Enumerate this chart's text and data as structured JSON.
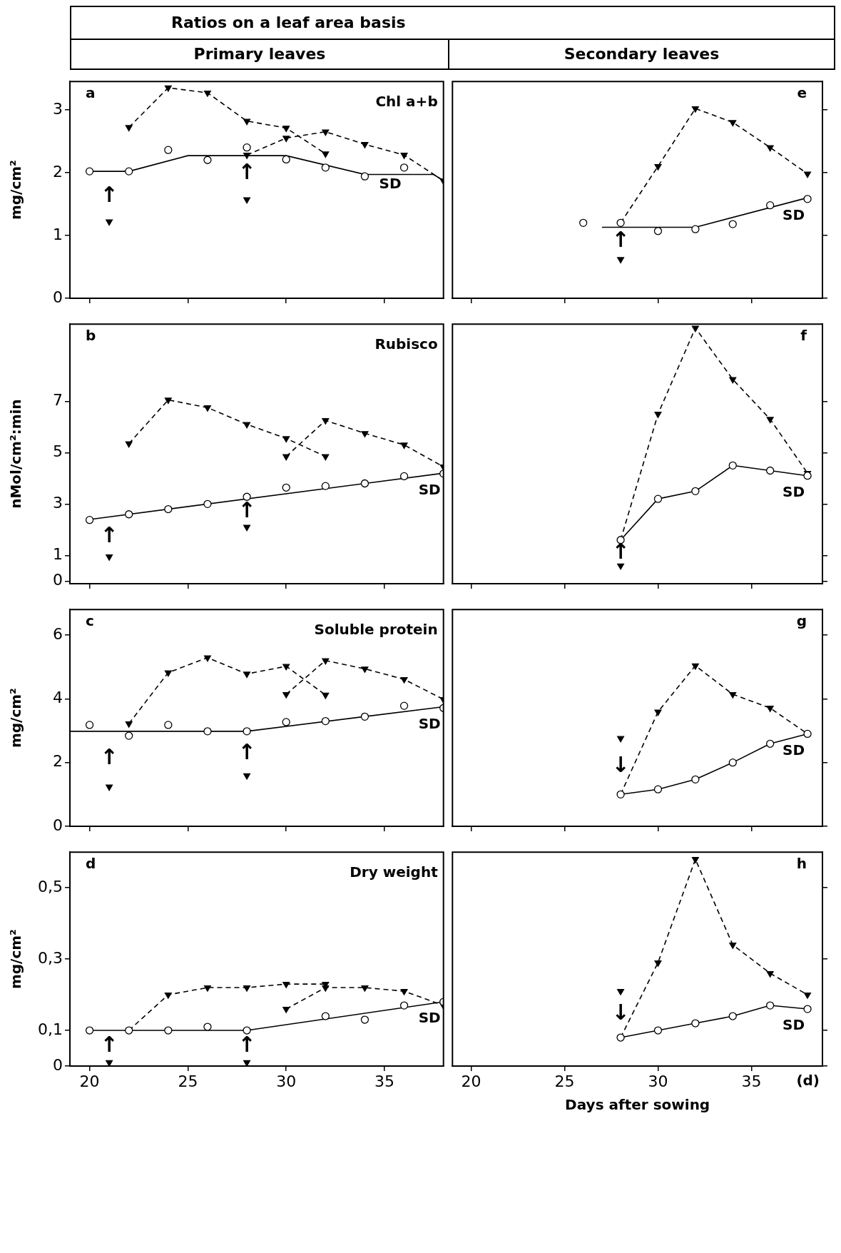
{
  "chart_data": [
    {
      "type": "line",
      "title": "Ratios on a leaf area basis",
      "subtitle": "Primary leaves",
      "ylabel": "mg/cm²",
      "xlim": [
        19,
        38
      ],
      "xticks": [
        20,
        25,
        30,
        35
      ],
      "ylim": [
        0,
        3.45
      ],
      "yticks": [
        0,
        1,
        2,
        3
      ],
      "tick_labels": "y",
      "annotations": [
        "a",
        "Chl a+b",
        "↑",
        "↑"
      ],
      "series": [
        {
          "name": "SD",
          "type": "scatter",
          "marker": "circle",
          "color": "#000000",
          "x": [
            20,
            22,
            24,
            26,
            28,
            30,
            32,
            34,
            36
          ],
          "values": [
            2.02,
            2.02,
            2.36,
            2.2,
            2.4,
            2.21,
            2.08,
            1.94,
            2.08
          ]
        },
        {
          "type": "line",
          "marker": "none",
          "line_style": "solid",
          "color": "#000000",
          "x": [
            20,
            22,
            25,
            30,
            34,
            37.5,
            38
          ],
          "values": [
            2.02,
            2.02,
            2.27,
            2.27,
            1.97,
            1.97,
            1.87
          ]
        },
        {
          "type": "line",
          "marker": "triangle",
          "line_style": "dashed",
          "color": "#000000",
          "x": [
            22,
            24,
            26,
            28,
            30,
            32
          ],
          "values": [
            2.72,
            3.35,
            3.27,
            2.82,
            2.71,
            2.3
          ]
        },
        {
          "type": "line",
          "marker": "triangle",
          "line_style": "dashed",
          "color": "#000000",
          "x": [
            28,
            30,
            32,
            34,
            36,
            38
          ],
          "values": [
            2.28,
            2.55,
            2.65,
            2.45,
            2.28,
            1.87
          ]
        },
        {
          "type": "scatter",
          "marker": "triangle",
          "color": "#000000",
          "x": [
            21,
            28
          ],
          "values": [
            1.22,
            1.57
          ]
        }
      ]
    },
    {
      "type": "line",
      "subtitle": "Secondary leaves",
      "xlim": [
        19,
        38.8
      ],
      "xticks": [
        20,
        25,
        30,
        35
      ],
      "ylim": [
        0,
        3.45
      ],
      "yticks": [
        0,
        1,
        2,
        3
      ],
      "tick_labels": false,
      "annotations": [
        "e",
        "↑"
      ],
      "series": [
        {
          "name": "SD",
          "type": "scatter",
          "marker": "circle",
          "color": "#000000",
          "x": [
            26,
            28,
            30,
            32,
            34,
            36,
            38
          ],
          "values": [
            1.2,
            1.2,
            1.07,
            1.1,
            1.18,
            1.48,
            1.58
          ]
        },
        {
          "type": "line",
          "marker": "none",
          "line_style": "solid",
          "color": "#000000",
          "x": [
            27,
            32,
            38
          ],
          "values": [
            1.13,
            1.13,
            1.6
          ]
        },
        {
          "type": "line",
          "marker": "triangle",
          "line_style": "dashed",
          "color": "#000000",
          "x": [
            28,
            30,
            32,
            34,
            36,
            38
          ],
          "values": [
            1.2,
            2.1,
            3.02,
            2.8,
            2.4,
            1.98
          ]
        },
        {
          "type": "scatter",
          "marker": "triangle",
          "color": "#000000",
          "x": [
            28
          ],
          "values": [
            0.62
          ]
        }
      ]
    },
    {
      "type": "line",
      "ylabel": "nMol/cm²:min",
      "xlim": [
        19,
        38
      ],
      "xticks": [
        20,
        25,
        30,
        35
      ],
      "ylim": [
        -0.1,
        10
      ],
      "yticks": [
        0,
        1,
        3,
        5,
        7
      ],
      "tick_labels": "y",
      "annotations": [
        "b",
        "Rubisco",
        "↑",
        "↑"
      ],
      "series": [
        {
          "name": "SD",
          "type": "scatter",
          "marker": "circle",
          "color": "#000000",
          "x": [
            20,
            22,
            24,
            26,
            28,
            30,
            32,
            34,
            36,
            38
          ],
          "values": [
            2.38,
            2.6,
            2.8,
            3.0,
            3.28,
            3.64,
            3.7,
            3.8,
            4.08,
            4.18
          ]
        },
        {
          "type": "line",
          "marker": "none",
          "line_style": "solid",
          "color": "#000000",
          "x": [
            20,
            38
          ],
          "values": [
            2.4,
            4.2
          ]
        },
        {
          "type": "line",
          "marker": "triangle",
          "line_style": "dashed",
          "color": "#000000",
          "x": [
            22,
            24,
            26,
            28,
            30,
            32
          ],
          "values": [
            5.35,
            7.05,
            6.75,
            6.1,
            5.55,
            4.85
          ]
        },
        {
          "type": "line",
          "marker": "triangle",
          "line_style": "dashed",
          "color": "#000000",
          "x": [
            30,
            32,
            34,
            36,
            38
          ],
          "values": [
            4.85,
            6.25,
            5.75,
            5.3,
            4.45
          ]
        },
        {
          "type": "scatter",
          "marker": "triangle",
          "color": "#000000",
          "x": [
            21,
            28
          ],
          "values": [
            0.95,
            2.1
          ]
        }
      ]
    },
    {
      "type": "line",
      "xlim": [
        19,
        38.8
      ],
      "xticks": [
        20,
        25,
        30,
        35
      ],
      "ylim": [
        -0.1,
        10
      ],
      "yticks": [
        0,
        1,
        3,
        5,
        7
      ],
      "tick_labels": false,
      "annotations": [
        "f",
        "↑"
      ],
      "series": [
        {
          "name": "SD",
          "type": "line",
          "marker": "circle",
          "line_style": "solid",
          "color": "#000000",
          "x": [
            28,
            30,
            32,
            34,
            36,
            38
          ],
          "values": [
            1.6,
            3.2,
            3.5,
            4.5,
            4.3,
            4.1
          ]
        },
        {
          "type": "line",
          "marker": "triangle",
          "line_style": "dashed",
          "color": "#000000",
          "x": [
            28,
            30,
            32,
            34,
            36,
            38
          ],
          "values": [
            1.6,
            6.5,
            9.85,
            7.85,
            6.3,
            4.2
          ]
        },
        {
          "type": "scatter",
          "marker": "triangle",
          "color": "#000000",
          "x": [
            28
          ],
          "values": [
            0.6
          ]
        }
      ]
    },
    {
      "type": "line",
      "ylabel": "mg/cm²",
      "xlim": [
        19,
        38
      ],
      "xticks": [
        20,
        25,
        30,
        35
      ],
      "ylim": [
        0,
        6.8
      ],
      "yticks": [
        0,
        2,
        4,
        6
      ],
      "tick_labels": "y",
      "annotations": [
        "c",
        "Soluble protein",
        "↑",
        "↑"
      ],
      "series": [
        {
          "name": "SD",
          "type": "scatter",
          "marker": "circle",
          "color": "#000000",
          "x": [
            20,
            22,
            24,
            26,
            28,
            30,
            32,
            34,
            36,
            38
          ],
          "values": [
            3.18,
            2.84,
            3.18,
            2.98,
            2.98,
            3.27,
            3.3,
            3.44,
            3.78,
            3.71
          ]
        },
        {
          "type": "line",
          "marker": "none",
          "line_style": "solid",
          "color": "#000000",
          "x": [
            19,
            28,
            38
          ],
          "values": [
            2.98,
            2.98,
            3.75
          ]
        },
        {
          "type": "line",
          "marker": "triangle",
          "line_style": "dashed",
          "color": "#000000",
          "x": [
            22,
            24,
            26,
            28,
            30,
            32
          ],
          "values": [
            3.22,
            4.82,
            5.29,
            4.78,
            5.02,
            4.12
          ]
        },
        {
          "type": "line",
          "marker": "triangle",
          "line_style": "dashed",
          "color": "#000000",
          "x": [
            30,
            32,
            34,
            36,
            38
          ],
          "values": [
            4.14,
            5.2,
            4.94,
            4.61,
            3.98
          ]
        },
        {
          "type": "scatter",
          "marker": "triangle",
          "color": "#000000",
          "x": [
            21,
            28
          ],
          "values": [
            1.24,
            1.59
          ]
        }
      ]
    },
    {
      "type": "line",
      "xlim": [
        19,
        38.8
      ],
      "xticks": [
        20,
        25,
        30,
        35
      ],
      "ylim": [
        0,
        6.8
      ],
      "yticks": [
        0,
        2,
        4,
        6
      ],
      "tick_labels": false,
      "annotations": [
        "g",
        "↓"
      ],
      "series": [
        {
          "name": "SD",
          "type": "line",
          "marker": "circle",
          "line_style": "solid",
          "color": "#000000",
          "x": [
            28,
            30,
            32,
            34,
            36,
            38
          ],
          "values": [
            1.0,
            1.16,
            1.47,
            2.0,
            2.59,
            2.9
          ]
        },
        {
          "type": "line",
          "marker": "triangle",
          "line_style": "dashed",
          "color": "#000000",
          "x": [
            28,
            30,
            32,
            34,
            36,
            38
          ],
          "values": [
            1.0,
            3.59,
            5.04,
            4.14,
            3.71,
            2.9
          ]
        },
        {
          "type": "scatter",
          "marker": "triangle",
          "color": "#000000",
          "x": [
            28
          ],
          "values": [
            2.76
          ]
        }
      ]
    },
    {
      "type": "line",
      "ylabel": "mg/cm²",
      "xlim": [
        19,
        38
      ],
      "xticks": [
        20,
        25,
        30,
        35
      ],
      "ylim": [
        0,
        0.6
      ],
      "yticks": [
        {
          "value": 0,
          "label": "0"
        },
        {
          "value": 0.1,
          "label": "0,1"
        },
        {
          "value": 0.3,
          "label": "0,3"
        },
        {
          "value": 0.5,
          "label": "0,5"
        }
      ],
      "annotations": [
        "d",
        "Dry weight",
        "↑",
        "↑"
      ],
      "series": [
        {
          "name": "SD",
          "type": "scatter",
          "marker": "circle",
          "color": "#000000",
          "x": [
            20,
            22,
            24,
            26,
            28,
            32,
            34,
            36,
            38
          ],
          "values": [
            0.1,
            0.1,
            0.1,
            0.11,
            0.1,
            0.14,
            0.13,
            0.17,
            0.18
          ]
        },
        {
          "type": "line",
          "marker": "none",
          "line_style": "solid",
          "color": "#000000",
          "x": [
            20,
            28,
            38
          ],
          "values": [
            0.1,
            0.1,
            0.18
          ]
        },
        {
          "type": "line",
          "marker": "triangle",
          "line_style": "dashed",
          "color": "#000000",
          "x": [
            22,
            24,
            26,
            28,
            30,
            32
          ],
          "values": [
            0.1,
            0.2,
            0.22,
            0.22,
            0.23,
            0.23
          ]
        },
        {
          "type": "line",
          "marker": "triangle",
          "line_style": "dashed",
          "color": "#000000",
          "x": [
            30,
            32,
            34,
            36,
            38
          ],
          "values": [
            0.16,
            0.22,
            0.22,
            0.21,
            0.17
          ]
        },
        {
          "type": "scatter",
          "marker": "triangle",
          "color": "#000000",
          "x": [
            21,
            28
          ],
          "values": [
            0.01,
            0.01
          ]
        }
      ]
    },
    {
      "type": "line",
      "xlabel": "Days after sowing",
      "xlim": [
        19,
        38.8
      ],
      "xticks": [
        20,
        25,
        30,
        35
      ],
      "ylim": [
        0,
        0.6
      ],
      "yticks": [
        0,
        0.1,
        0.3,
        0.5
      ],
      "tick_labels": "x",
      "annotations": [
        "h",
        "(d)",
        "↓"
      ],
      "series": [
        {
          "name": "SD",
          "type": "line",
          "marker": "circle",
          "line_style": "solid",
          "color": "#000000",
          "x": [
            28,
            30,
            32,
            34,
            36,
            38
          ],
          "values": [
            0.08,
            0.1,
            0.12,
            0.14,
            0.17,
            0.16
          ]
        },
        {
          "type": "line",
          "marker": "triangle",
          "line_style": "dashed",
          "color": "#000000",
          "x": [
            28,
            30,
            32,
            34,
            36,
            38
          ],
          "values": [
            0.08,
            0.29,
            0.58,
            0.34,
            0.26,
            0.2
          ]
        },
        {
          "type": "scatter",
          "marker": "triangle",
          "color": "#000000",
          "x": [
            28
          ],
          "values": [
            0.21
          ]
        }
      ]
    }
  ]
}
